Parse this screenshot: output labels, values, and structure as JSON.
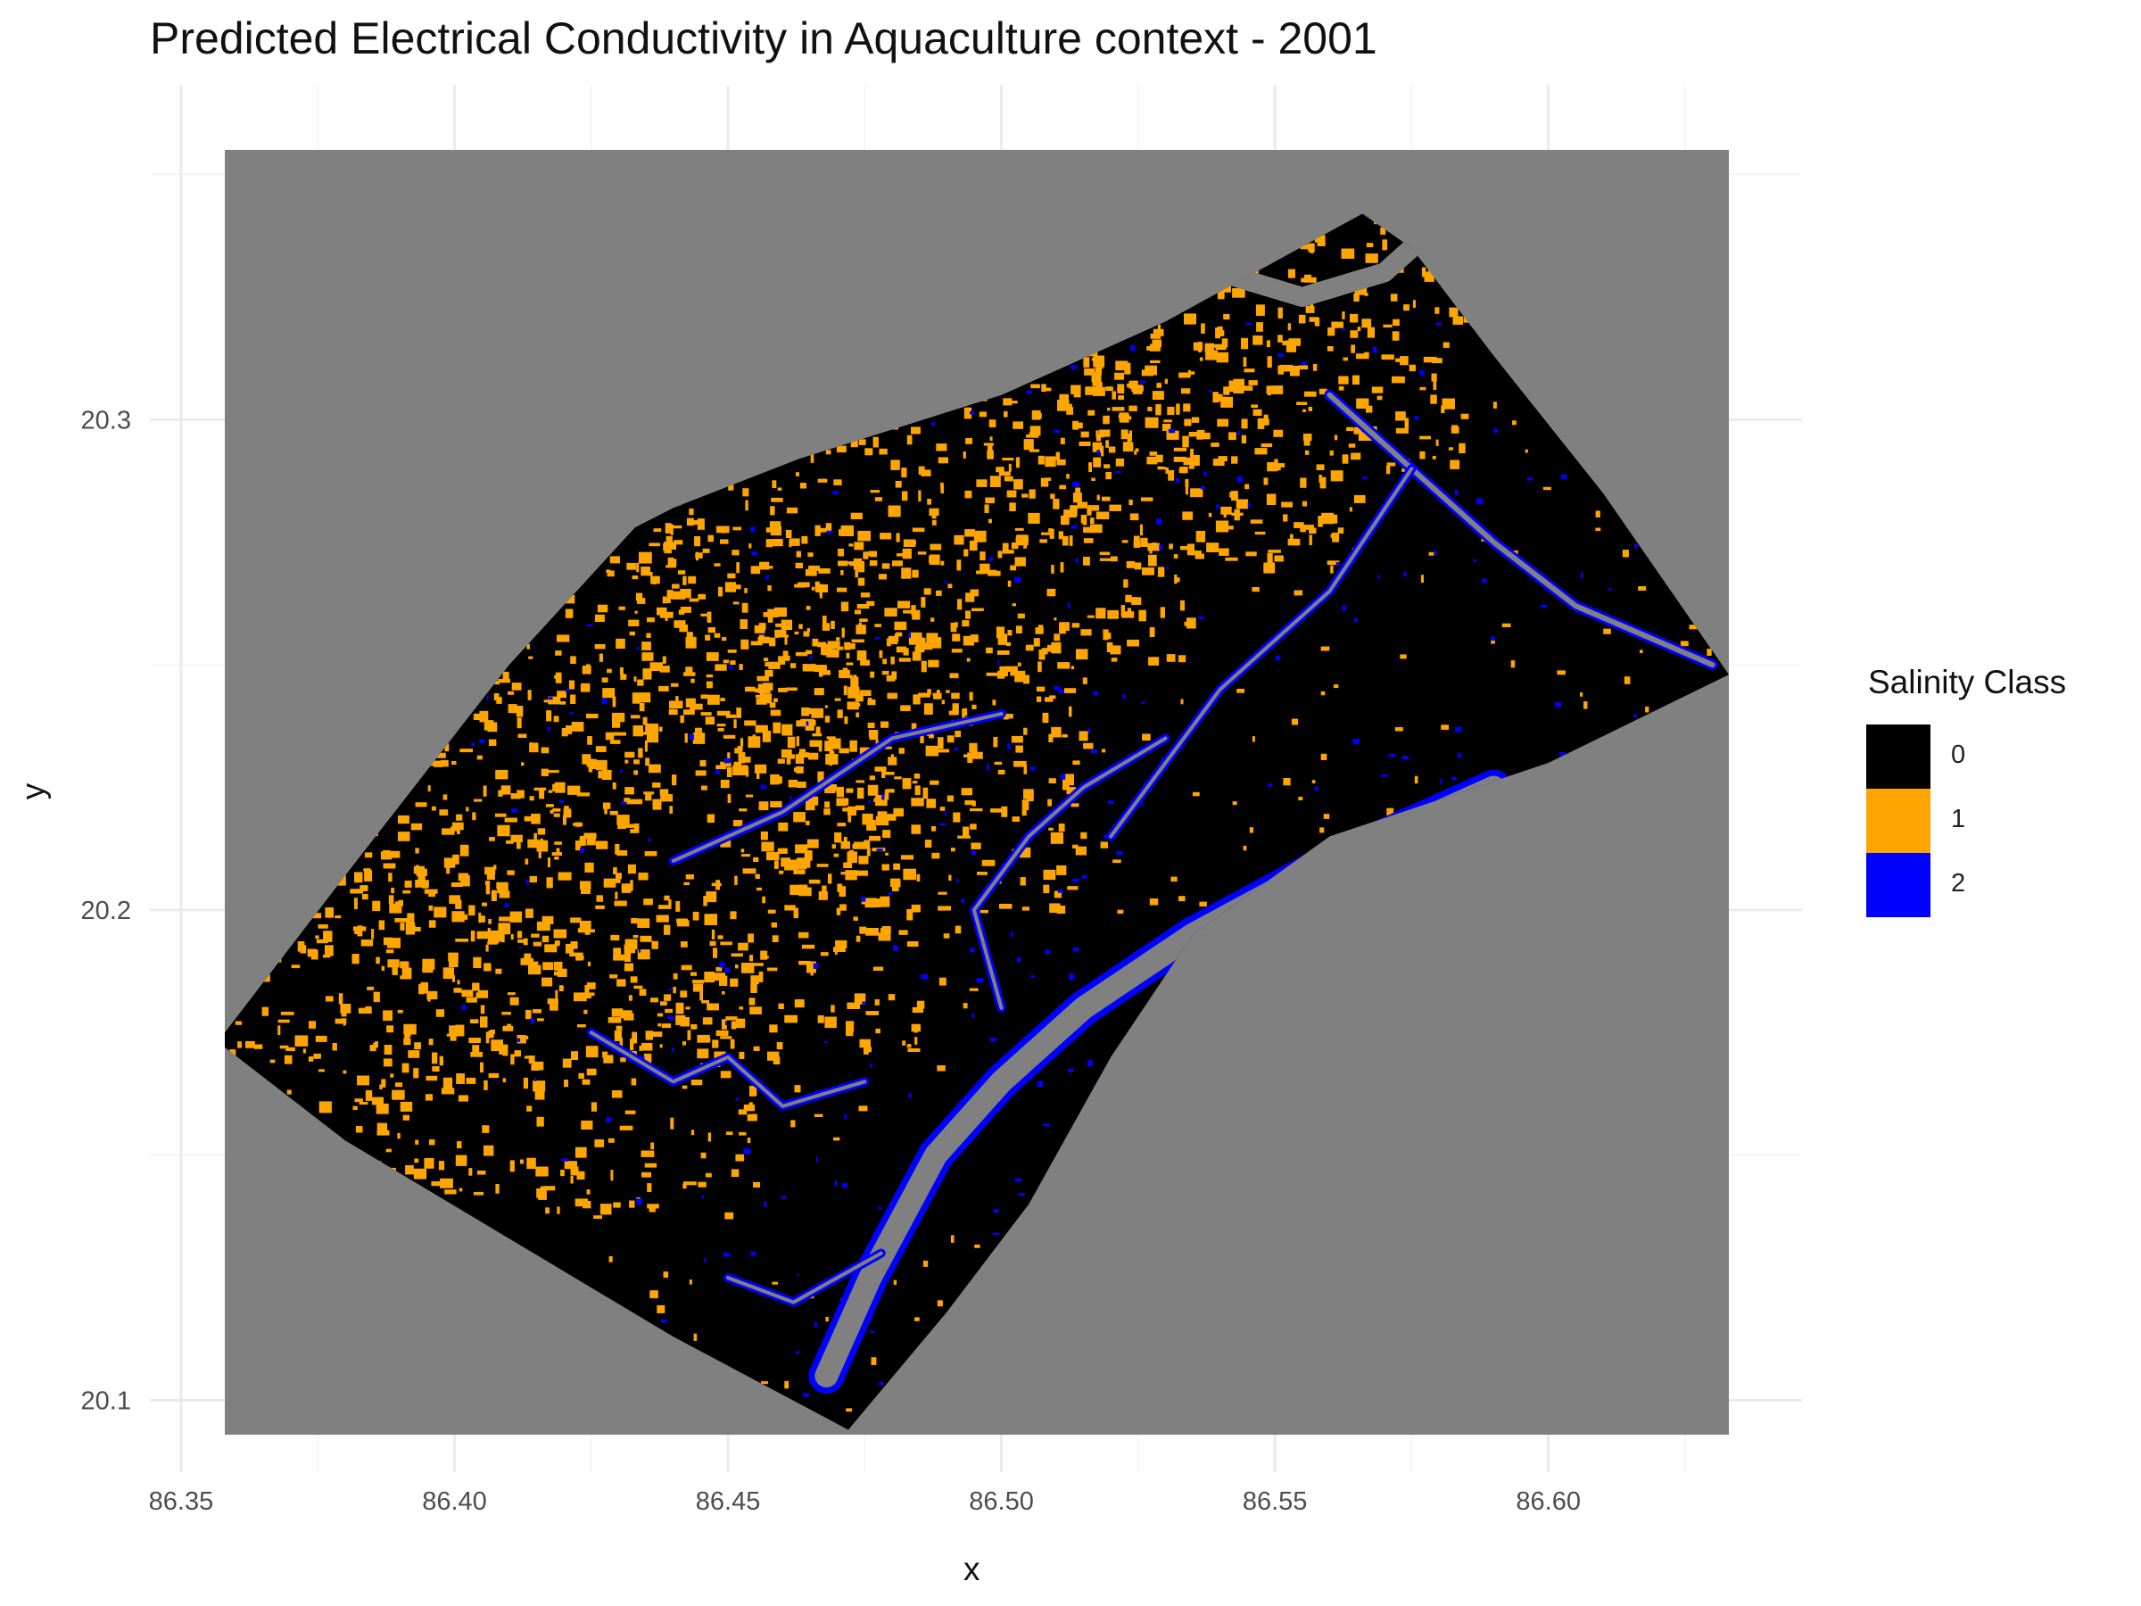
{
  "chart_data": {
    "type": "heatmap",
    "title": "Predicted Electrical Conductivity in Aquaculture context - 2001",
    "xlabel": "x",
    "ylabel": "y",
    "xlim": [
      86.358,
      86.633
    ],
    "ylim": [
      20.093,
      20.355
    ],
    "x_ticks": [
      "86.35",
      "86.40",
      "86.45",
      "86.50",
      "86.55",
      "86.60"
    ],
    "x_tick_values": [
      86.35,
      86.4,
      86.45,
      86.5,
      86.55,
      86.6
    ],
    "y_ticks": [
      "20.1",
      "20.2",
      "20.3"
    ],
    "y_tick_values": [
      20.1,
      20.2,
      20.3
    ],
    "grid": true,
    "background_color": "#808080",
    "nodata_color": "#808080",
    "region_outline": [
      [
        86.358,
        20.175
      ],
      [
        86.38,
        20.207
      ],
      [
        86.41,
        20.25
      ],
      [
        86.433,
        20.278
      ],
      [
        86.44,
        20.282
      ],
      [
        86.463,
        20.292
      ],
      [
        86.5,
        20.305
      ],
      [
        86.53,
        20.32
      ],
      [
        86.566,
        20.342
      ],
      [
        86.575,
        20.335
      ],
      [
        86.59,
        20.313
      ],
      [
        86.61,
        20.285
      ],
      [
        86.633,
        20.248
      ],
      [
        86.6,
        20.23
      ],
      [
        86.56,
        20.215
      ],
      [
        86.535,
        20.195
      ],
      [
        86.52,
        20.17
      ],
      [
        86.505,
        20.14
      ],
      [
        86.49,
        20.118
      ],
      [
        86.472,
        20.094
      ],
      [
        86.44,
        20.113
      ],
      [
        86.41,
        20.133
      ],
      [
        86.38,
        20.153
      ],
      [
        86.358,
        20.172
      ]
    ],
    "legend": {
      "title": "Salinity Class",
      "position": "right",
      "entries": [
        {
          "label": "0",
          "color": "#000000"
        },
        {
          "label": "1",
          "color": "#FFA500"
        },
        {
          "label": "2",
          "color": "#0000FF"
        }
      ]
    }
  }
}
